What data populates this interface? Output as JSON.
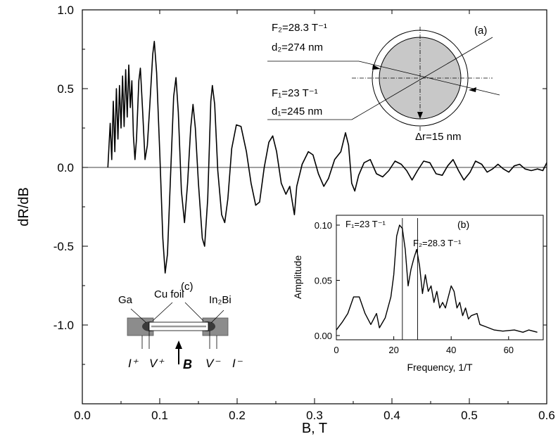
{
  "chart_data": [
    {
      "type": "line",
      "panel": "main",
      "xlabel": "B, T",
      "ylabel": "dR/dB",
      "xlim": [
        0.0,
        0.6
      ],
      "ylim": [
        -1.3,
        1.0
      ],
      "xticks": [
        0.0,
        0.1,
        0.2,
        0.3,
        0.4,
        0.5,
        0.6
      ],
      "xtick_labels": [
        "0.0",
        "0.1",
        "0.2",
        "0.3",
        "0.4",
        "0.5",
        "0.6"
      ],
      "yticks": [
        -1.0,
        -0.5,
        0.0,
        0.5,
        1.0
      ],
      "ytick_labels": [
        "-1.0",
        "-0.5",
        "0.0",
        "0.5",
        "1.0"
      ],
      "baseline": 0.0,
      "grid": false,
      "series": [
        {
          "points": [
            [
              0.033,
              0.0
            ],
            [
              0.036,
              0.28
            ],
            [
              0.038,
              0.05
            ],
            [
              0.04,
              0.42
            ],
            [
              0.042,
              0.1
            ],
            [
              0.044,
              0.5
            ],
            [
              0.046,
              0.18
            ],
            [
              0.048,
              0.52
            ],
            [
              0.05,
              0.25
            ],
            [
              0.052,
              0.58
            ],
            [
              0.054,
              0.26
            ],
            [
              0.056,
              0.62
            ],
            [
              0.058,
              0.32
            ],
            [
              0.06,
              0.65
            ],
            [
              0.062,
              0.38
            ],
            [
              0.064,
              0.55
            ],
            [
              0.066,
              0.2
            ],
            [
              0.068,
              0.05
            ],
            [
              0.07,
              0.18
            ],
            [
              0.073,
              0.55
            ],
            [
              0.075,
              0.63
            ],
            [
              0.078,
              0.35
            ],
            [
              0.081,
              0.05
            ],
            [
              0.084,
              0.14
            ],
            [
              0.087,
              0.38
            ],
            [
              0.091,
              0.72
            ],
            [
              0.093,
              0.8
            ],
            [
              0.096,
              0.6
            ],
            [
              0.1,
              0.1
            ],
            [
              0.104,
              -0.45
            ],
            [
              0.107,
              -0.67
            ],
            [
              0.11,
              -0.55
            ],
            [
              0.114,
              -0.05
            ],
            [
              0.118,
              0.45
            ],
            [
              0.121,
              0.57
            ],
            [
              0.124,
              0.35
            ],
            [
              0.128,
              -0.15
            ],
            [
              0.132,
              -0.35
            ],
            [
              0.136,
              -0.1
            ],
            [
              0.14,
              0.25
            ],
            [
              0.143,
              0.4
            ],
            [
              0.146,
              0.25
            ],
            [
              0.15,
              -0.1
            ],
            [
              0.155,
              -0.45
            ],
            [
              0.158,
              -0.5
            ],
            [
              0.162,
              -0.2
            ],
            [
              0.166,
              0.42
            ],
            [
              0.168,
              0.52
            ],
            [
              0.171,
              0.4
            ],
            [
              0.175,
              -0.02
            ],
            [
              0.18,
              -0.3
            ],
            [
              0.184,
              -0.35
            ],
            [
              0.188,
              -0.2
            ],
            [
              0.193,
              0.12
            ],
            [
              0.199,
              0.27
            ],
            [
              0.205,
              0.26
            ],
            [
              0.212,
              0.1
            ],
            [
              0.218,
              -0.1
            ],
            [
              0.224,
              -0.24
            ],
            [
              0.229,
              -0.22
            ],
            [
              0.235,
              0.0
            ],
            [
              0.241,
              0.16
            ],
            [
              0.246,
              0.2
            ],
            [
              0.251,
              0.1
            ],
            [
              0.257,
              -0.1
            ],
            [
              0.263,
              -0.17
            ],
            [
              0.268,
              -0.12
            ],
            [
              0.274,
              -0.3
            ],
            [
              0.277,
              -0.12
            ],
            [
              0.284,
              0.02
            ],
            [
              0.292,
              0.1
            ],
            [
              0.298,
              0.08
            ],
            [
              0.305,
              -0.04
            ],
            [
              0.312,
              -0.12
            ],
            [
              0.318,
              -0.07
            ],
            [
              0.326,
              0.05
            ],
            [
              0.334,
              0.1
            ],
            [
              0.34,
              0.22
            ],
            [
              0.344,
              0.14
            ],
            [
              0.348,
              -0.1
            ],
            [
              0.352,
              -0.15
            ],
            [
              0.357,
              -0.05
            ],
            [
              0.364,
              0.03
            ],
            [
              0.372,
              0.05
            ],
            [
              0.38,
              -0.04
            ],
            [
              0.388,
              -0.06
            ],
            [
              0.396,
              -0.02
            ],
            [
              0.404,
              0.04
            ],
            [
              0.412,
              0.02
            ],
            [
              0.419,
              -0.02
            ],
            [
              0.426,
              -0.08
            ],
            [
              0.433,
              -0.02
            ],
            [
              0.441,
              0.04
            ],
            [
              0.449,
              0.03
            ],
            [
              0.457,
              -0.04
            ],
            [
              0.465,
              -0.05
            ],
            [
              0.472,
              0.01
            ],
            [
              0.479,
              0.05
            ],
            [
              0.486,
              -0.02
            ],
            [
              0.493,
              -0.08
            ],
            [
              0.501,
              -0.03
            ],
            [
              0.508,
              0.04
            ],
            [
              0.516,
              0.02
            ],
            [
              0.523,
              -0.03
            ],
            [
              0.53,
              -0.01
            ],
            [
              0.537,
              0.02
            ],
            [
              0.544,
              -0.01
            ],
            [
              0.551,
              -0.03
            ],
            [
              0.558,
              0.01
            ],
            [
              0.565,
              0.02
            ],
            [
              0.572,
              -0.01
            ],
            [
              0.58,
              -0.02
            ],
            [
              0.588,
              -0.01
            ],
            [
              0.595,
              -0.02
            ],
            [
              0.6,
              0.03
            ]
          ]
        }
      ]
    },
    {
      "type": "line",
      "panel": "(b)",
      "xlabel": "Frequency, 1/T",
      "ylabel": "Amplitude",
      "xlim": [
        0,
        72
      ],
      "ylim": [
        0,
        0.11
      ],
      "xticks": [
        0,
        20,
        40,
        60
      ],
      "xtick_labels": [
        "0",
        "20",
        "40",
        "60"
      ],
      "yticks": [
        0.0,
        0.05,
        0.1
      ],
      "ytick_labels": [
        "0.00",
        "0.05",
        "0.10"
      ],
      "series": [
        {
          "points": [
            [
              0,
              0.005
            ],
            [
              2,
              0.012
            ],
            [
              4,
              0.02
            ],
            [
              6,
              0.035
            ],
            [
              8,
              0.035
            ],
            [
              10,
              0.02
            ],
            [
              12,
              0.01
            ],
            [
              14,
              0.02
            ],
            [
              15,
              0.007
            ],
            [
              17,
              0.016
            ],
            [
              19,
              0.035
            ],
            [
              20,
              0.055
            ],
            [
              21,
              0.09
            ],
            [
              22,
              0.1
            ],
            [
              23,
              0.097
            ],
            [
              24,
              0.078
            ],
            [
              25,
              0.045
            ],
            [
              26,
              0.06
            ],
            [
              27,
              0.07
            ],
            [
              28,
              0.078
            ],
            [
              29,
              0.063
            ],
            [
              30,
              0.038
            ],
            [
              31,
              0.055
            ],
            [
              32,
              0.04
            ],
            [
              33,
              0.045
            ],
            [
              34,
              0.03
            ],
            [
              35,
              0.04
            ],
            [
              36,
              0.025
            ],
            [
              37,
              0.03
            ],
            [
              38,
              0.025
            ],
            [
              40,
              0.045
            ],
            [
              41,
              0.04
            ],
            [
              42,
              0.025
            ],
            [
              43,
              0.03
            ],
            [
              44,
              0.018
            ],
            [
              45,
              0.025
            ],
            [
              46,
              0.015
            ],
            [
              47,
              0.018
            ],
            [
              49,
              0.02
            ],
            [
              50,
              0.01
            ],
            [
              52,
              0.008
            ],
            [
              55,
              0.005
            ],
            [
              58,
              0.004
            ],
            [
              62,
              0.005
            ],
            [
              65,
              0.003
            ],
            [
              67,
              0.005
            ],
            [
              70,
              0.003
            ]
          ]
        }
      ],
      "markers": [
        {
          "x": 23,
          "label": "F₁=23 T⁻¹"
        },
        {
          "x": 28.3,
          "label": "F₂=28.3 T⁻¹"
        }
      ]
    }
  ],
  "inset_a": {
    "label": "(a)",
    "f2_text": "F₂=28.3 T⁻¹",
    "d2_text": "d₂=274 nm",
    "f1_text": "F₁=23 T⁻¹",
    "d1_text": "d₁=245 nm",
    "dr_text": "Δr=15 nm"
  },
  "inset_b": {
    "label": "(b)",
    "f1_text": "F₁=23 T⁻¹",
    "f2_text": "F₂=28.3 T⁻¹"
  },
  "inset_c": {
    "label": "(c)",
    "ga": "Ga",
    "cu": "Cu foil",
    "inbi": "In₂Bi",
    "i_plus": "I⁺",
    "v_plus": "V⁺",
    "b_label": "B",
    "v_minus": "V⁻",
    "i_minus": "I⁻"
  },
  "colors": {
    "line": "#000000",
    "disk_fill": "#c8c8c8",
    "contact_fill": "#8c8c8c",
    "contact_dark": "#3a3a3a"
  }
}
